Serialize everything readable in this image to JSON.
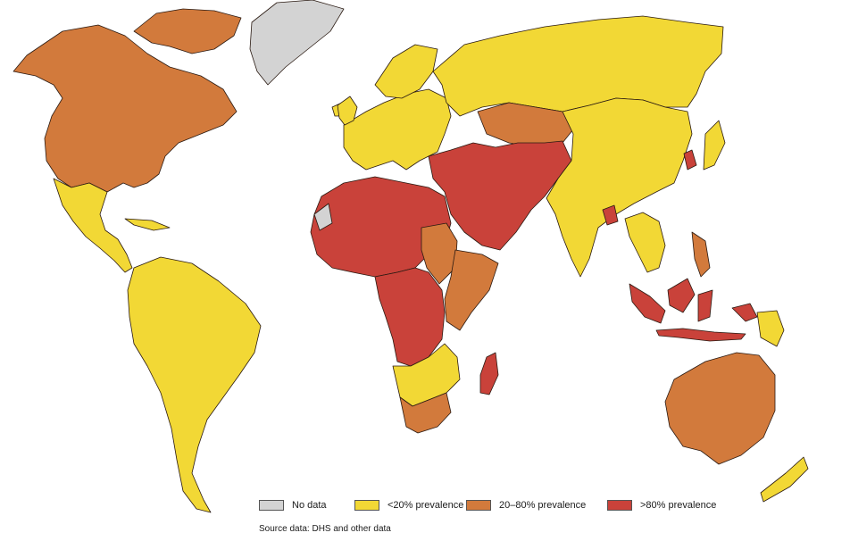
{
  "legend": {
    "items": [
      {
        "key": "nodata",
        "label": "No data",
        "color": "#d3d3d3"
      },
      {
        "key": "low",
        "label": "<20% prevalence",
        "color": "#f2d835"
      },
      {
        "key": "mid",
        "label": "20–80% prevalence",
        "color": "#d27a3c"
      },
      {
        "key": "high",
        "label": ">80% prevalence",
        "color": "#c9423a"
      }
    ]
  },
  "source": "Source data: DHS and other data",
  "regions": [
    {
      "name": "north-america",
      "category": "mid"
    },
    {
      "name": "canadian-arctic-islands",
      "category": "mid"
    },
    {
      "name": "greenland",
      "category": "nodata"
    },
    {
      "name": "iceland",
      "category": "low"
    },
    {
      "name": "mexico-central-america",
      "category": "low"
    },
    {
      "name": "cuba-caribbean",
      "category": "low"
    },
    {
      "name": "south-america",
      "category": "low"
    },
    {
      "name": "europe",
      "category": "low"
    },
    {
      "name": "russia",
      "category": "low"
    },
    {
      "name": "scandinavia",
      "category": "low"
    },
    {
      "name": "uk-ireland",
      "category": "low"
    },
    {
      "name": "kazakhstan",
      "category": "mid"
    },
    {
      "name": "middle-east-central-asia",
      "category": "high"
    },
    {
      "name": "north-africa-sahel",
      "category": "high"
    },
    {
      "name": "western-sahara",
      "category": "nodata"
    },
    {
      "name": "sudan",
      "category": "mid"
    },
    {
      "name": "central-africa",
      "category": "high"
    },
    {
      "name": "east-africa",
      "category": "mid"
    },
    {
      "name": "southern-africa",
      "category": "low"
    },
    {
      "name": "south-africa",
      "category": "mid"
    },
    {
      "name": "madagascar",
      "category": "high"
    },
    {
      "name": "china-south-asia",
      "category": "low"
    },
    {
      "name": "bangladesh",
      "category": "high"
    },
    {
      "name": "southeast-asia",
      "category": "low"
    },
    {
      "name": "indonesia-malaysia",
      "category": "high"
    },
    {
      "name": "philippines",
      "category": "mid"
    },
    {
      "name": "japan",
      "category": "low"
    },
    {
      "name": "korea",
      "category": "high"
    },
    {
      "name": "papua",
      "category": "low"
    },
    {
      "name": "australia",
      "category": "mid"
    },
    {
      "name": "new-zealand",
      "category": "low"
    }
  ]
}
